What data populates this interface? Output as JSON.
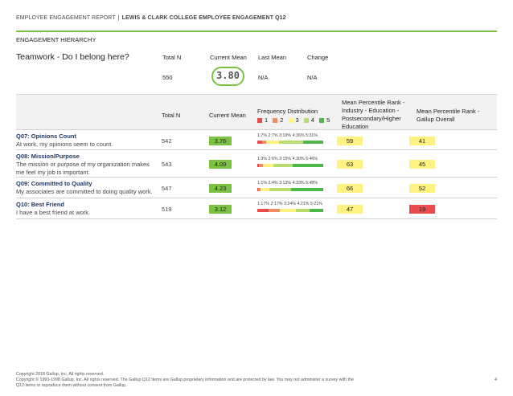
{
  "header": {
    "report": "EMPLOYEE ENGAGEMENT REPORT",
    "separator": "|",
    "title": "LEWIS & CLARK COLLEGE EMPLOYEE ENGAGEMENT Q12"
  },
  "section_title": "ENGAGEMENT HIERARCHY",
  "summary": {
    "dimension": "Teamwork - Do I belong here?",
    "labels": {
      "total_n": "Total N",
      "current_mean": "Current Mean",
      "last_mean": "Last Mean",
      "change": "Change"
    },
    "values": {
      "total_n": "550",
      "current_mean": "3.80",
      "last_mean": "N/A",
      "change": "N/A"
    }
  },
  "table": {
    "headers": {
      "total_n": "Total N",
      "current_mean": "Current Mean",
      "freq": "Frequency Distribution",
      "pct_industry": "Mean Percentile Rank - Industry - Education - Postsecondary/Higher Education",
      "pct_overall": "Mean Percentile Rank - Gallup Overall"
    },
    "legend": [
      "1",
      "2",
      "3",
      "4",
      "5"
    ],
    "colors": {
      "1": "#e84c4c",
      "2": "#f28c62",
      "3": "#fff280",
      "4": "#b8dc6e",
      "5": "#4cb848",
      "mean": "#7cc242",
      "yellow": "#fff280",
      "red": "#e84c4c"
    },
    "rows": [
      {
        "title": "Q07: Opinions Count",
        "desc": "At work, my opinions seem to count.",
        "n": "542",
        "mean": "3.76",
        "freq_label": "1:7% 2:7% 3:19% 4:36% 5:31%",
        "freq": [
          7,
          7,
          19,
          36,
          31
        ],
        "pct_industry": "59",
        "pct_overall": "41",
        "overall_color": "yellow"
      },
      {
        "title": "Q08: Mission/Purpose",
        "desc": "The mission or purpose of my organization makes me feel my job is important.",
        "n": "543",
        "mean": "4.09",
        "freq_label": "1:3% 2:6% 3:15% 4:30% 5:46%",
        "freq": [
          3,
          6,
          15,
          30,
          46
        ],
        "pct_industry": "63",
        "pct_overall": "45",
        "overall_color": "yellow"
      },
      {
        "title": "Q09: Committed to Quality",
        "desc": "My associates are committed to doing quality work.",
        "n": "547",
        "mean": "4.23",
        "freq_label": "1:1% 2:4% 3:13% 4:33% 5:48%",
        "freq": [
          1,
          4,
          13,
          33,
          48
        ],
        "pct_industry": "66",
        "pct_overall": "52",
        "overall_color": "yellow"
      },
      {
        "title": "Q10: Best Friend",
        "desc": "I have a best friend at work.",
        "n": "519",
        "mean": "3.12",
        "freq_label": "1:17% 2:17% 3:24% 4:21% 5:21%",
        "freq": [
          17,
          17,
          24,
          21,
          21
        ],
        "pct_industry": "47",
        "pct_overall": "19",
        "overall_color": "red"
      }
    ]
  },
  "footer": {
    "line1": "Copyright 2018 Gallup, Inc. All rights reserved.",
    "line2": "Copyright © 1993-1998 Gallup, Inc. All rights reserved. The Gallup Q12 items are Gallup proprietary information and are protected by law. You may not administer a survey with the Q12 items or reproduce them without consent from Gallup.",
    "page": "4"
  }
}
